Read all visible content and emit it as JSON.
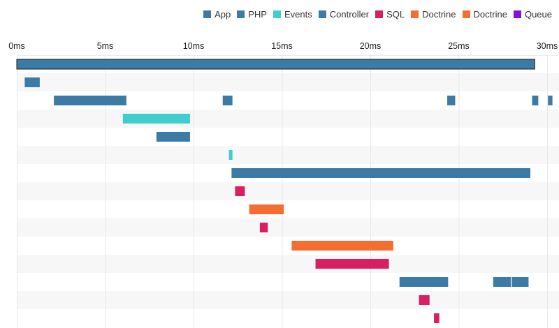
{
  "chart_data": {
    "type": "timeline",
    "legend": [
      {
        "name": "App",
        "color": "#3b7ba5"
      },
      {
        "name": "PHP",
        "color": "#3b7ba5"
      },
      {
        "name": "Events",
        "color": "#3fcdcd"
      },
      {
        "name": "Controller",
        "color": "#3b7ba5"
      },
      {
        "name": "SQL",
        "color": "#d81f62"
      },
      {
        "name": "Doctrine",
        "color": "#f46e32"
      },
      {
        "name": "Doctrine",
        "color": "#f46e32"
      },
      {
        "name": "Queue",
        "color": "#8a0fd1"
      }
    ],
    "x_ticks": [
      "0ms",
      "5ms",
      "10ms",
      "15ms",
      "20ms",
      "25ms",
      "30ms"
    ],
    "x_range": [
      0,
      30
    ],
    "grid": true,
    "legend_position": "top-right",
    "rows": [
      {
        "segments": [
          {
            "start": 0.0,
            "end": 29.3,
            "color": "#3b7ba5",
            "outlined": true
          }
        ]
      },
      {
        "segments": [
          {
            "start": 0.45,
            "end": 1.3,
            "color": "#3b7ba5"
          }
        ]
      },
      {
        "segments": [
          {
            "start": 2.1,
            "end": 6.2,
            "color": "#3b7ba5"
          },
          {
            "start": 11.65,
            "end": 12.2,
            "color": "#3b7ba5"
          },
          {
            "start": 24.35,
            "end": 24.8,
            "color": "#3b7ba5"
          },
          {
            "start": 29.15,
            "end": 29.5,
            "color": "#3b7ba5"
          },
          {
            "start": 30.05,
            "end": 30.3,
            "color": "#3b7ba5"
          }
        ]
      },
      {
        "segments": [
          {
            "start": 6.0,
            "end": 9.8,
            "color": "#3fcdcd"
          }
        ]
      },
      {
        "segments": [
          {
            "start": 7.9,
            "end": 9.8,
            "color": "#3b7ba5"
          }
        ]
      },
      {
        "segments": [
          {
            "start": 12.0,
            "end": 12.2,
            "color": "#3fcdcd"
          }
        ]
      },
      {
        "segments": [
          {
            "start": 12.15,
            "end": 29.05,
            "color": "#3b7ba5"
          }
        ]
      },
      {
        "segments": [
          {
            "start": 12.35,
            "end": 12.9,
            "color": "#d81f62"
          }
        ]
      },
      {
        "segments": [
          {
            "start": 13.15,
            "end": 15.1,
            "color": "#f46e32"
          }
        ]
      },
      {
        "segments": [
          {
            "start": 13.75,
            "end": 14.2,
            "color": "#d81f62"
          }
        ]
      },
      {
        "segments": [
          {
            "start": 15.55,
            "end": 21.3,
            "color": "#f46e32"
          }
        ]
      },
      {
        "segments": [
          {
            "start": 16.9,
            "end": 21.05,
            "color": "#d81f62"
          }
        ]
      },
      {
        "segments": [
          {
            "start": 21.65,
            "end": 24.4,
            "color": "#3b7ba5"
          },
          {
            "start": 26.95,
            "end": 27.95,
            "color": "#3b7ba5"
          },
          {
            "start": 28.0,
            "end": 28.95,
            "color": "#3b7ba5"
          }
        ]
      },
      {
        "segments": [
          {
            "start": 22.75,
            "end": 23.35,
            "color": "#d81f62"
          }
        ]
      },
      {
        "segments": [
          {
            "start": 23.6,
            "end": 23.9,
            "color": "#d81f62"
          }
        ]
      }
    ]
  }
}
